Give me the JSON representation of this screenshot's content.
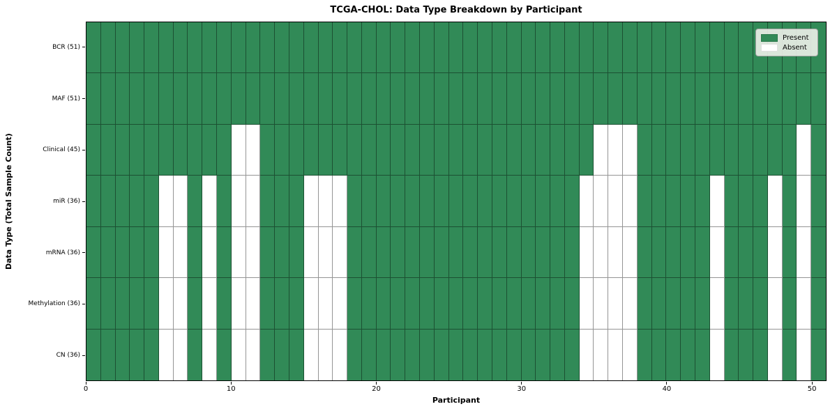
{
  "title": "TCGA-CHOL: Data Type Breakdown by Participant",
  "xaxis_label": "Participant",
  "yaxis_label": "Data Type (Total Sample Count)",
  "legend": {
    "entries": [
      {
        "label": "Present",
        "color": "#318a57"
      },
      {
        "label": "Absent",
        "color": "#ffffff"
      }
    ]
  },
  "colors": {
    "present": "#318a57",
    "absent": "#ffffff",
    "cell_edge": "rgba(0,0,0,0.42)",
    "spine": "#000000"
  },
  "chart_data": {
    "type": "heatmap",
    "title": "TCGA-CHOL: Data Type Breakdown by Participant",
    "xlabel": "Participant",
    "ylabel": "Data Type (Total Sample Count)",
    "n_participants": 51,
    "x_range": [
      0,
      51
    ],
    "x_tick_values": [
      0,
      10,
      20,
      30,
      40,
      50
    ],
    "x_tick_labels": [
      "0",
      "10",
      "20",
      "30",
      "40",
      "50"
    ],
    "legend_position": "upper right",
    "cell_states": [
      "Present",
      "Absent"
    ],
    "rows": [
      {
        "label": "BCR (51)",
        "data_type": "BCR",
        "total_count": 51,
        "absent_participants": []
      },
      {
        "label": "MAF (51)",
        "data_type": "MAF",
        "total_count": 51,
        "absent_participants": []
      },
      {
        "label": "Clinical (45)",
        "data_type": "Clinical",
        "total_count": 45,
        "absent_participants": [
          10,
          11,
          35,
          36,
          37,
          49
        ]
      },
      {
        "label": "miR (36)",
        "data_type": "miR",
        "total_count": 36,
        "absent_participants": [
          5,
          6,
          8,
          10,
          11,
          15,
          16,
          17,
          34,
          35,
          36,
          37,
          43,
          47,
          49
        ]
      },
      {
        "label": "mRNA (36)",
        "data_type": "mRNA",
        "total_count": 36,
        "absent_participants": [
          5,
          6,
          8,
          10,
          11,
          15,
          16,
          17,
          34,
          35,
          36,
          37,
          43,
          47,
          49
        ]
      },
      {
        "label": "Methylation (36)",
        "data_type": "Methylation",
        "total_count": 36,
        "absent_participants": [
          5,
          6,
          8,
          10,
          11,
          15,
          16,
          17,
          34,
          35,
          36,
          37,
          43,
          47,
          49
        ]
      },
      {
        "label": "CN (36)",
        "data_type": "CN",
        "total_count": 36,
        "absent_participants": [
          5,
          6,
          8,
          10,
          11,
          15,
          16,
          17,
          34,
          35,
          36,
          37,
          43,
          47,
          49
        ]
      }
    ]
  }
}
